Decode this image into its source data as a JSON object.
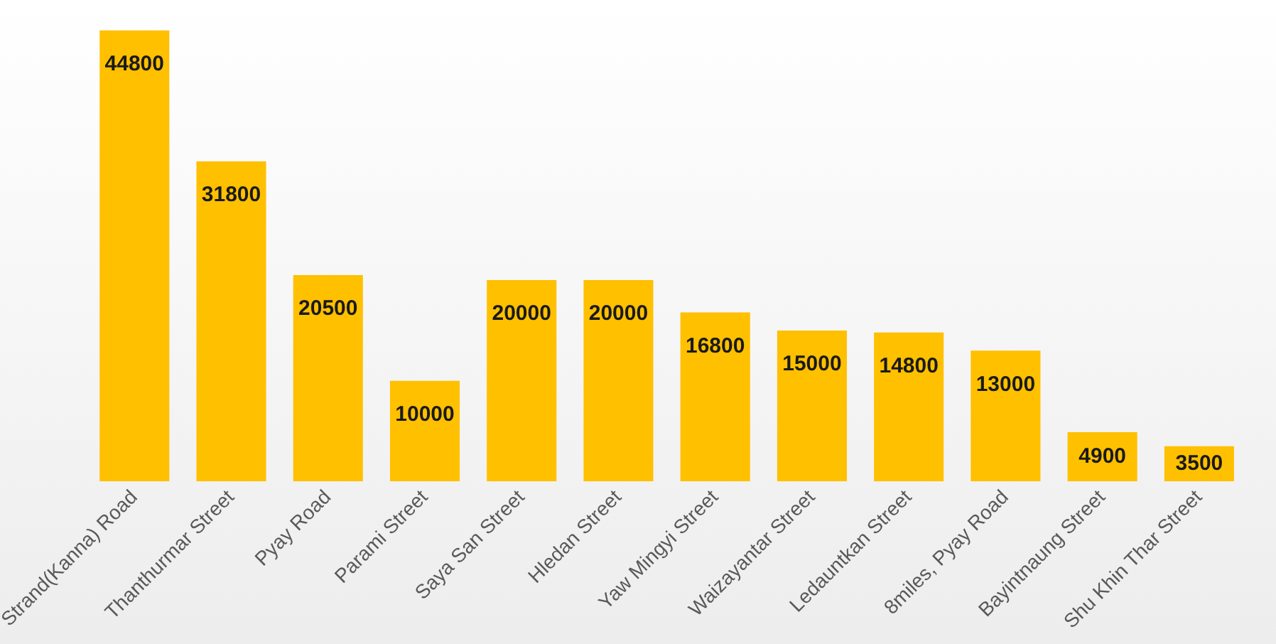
{
  "chart_data": {
    "type": "bar",
    "categories": [
      "Strand(Kanna) Road",
      "Thanthurmar Street",
      "Pyay Road",
      "Parami Street",
      "Saya San Street",
      "Hledan Street",
      "Yaw Mingyi Street",
      "Waizayantar Street",
      "Ledauntkan Street",
      "8miles, Pyay Road",
      "Bayintnaung Street",
      "Shu Khin Thar Street"
    ],
    "values": [
      44800,
      31800,
      20500,
      10000,
      20000,
      20000,
      16800,
      15000,
      14800,
      13000,
      4900,
      3500
    ],
    "color": "#ffc000",
    "data_labels": true,
    "grid": false,
    "legend": false
  }
}
